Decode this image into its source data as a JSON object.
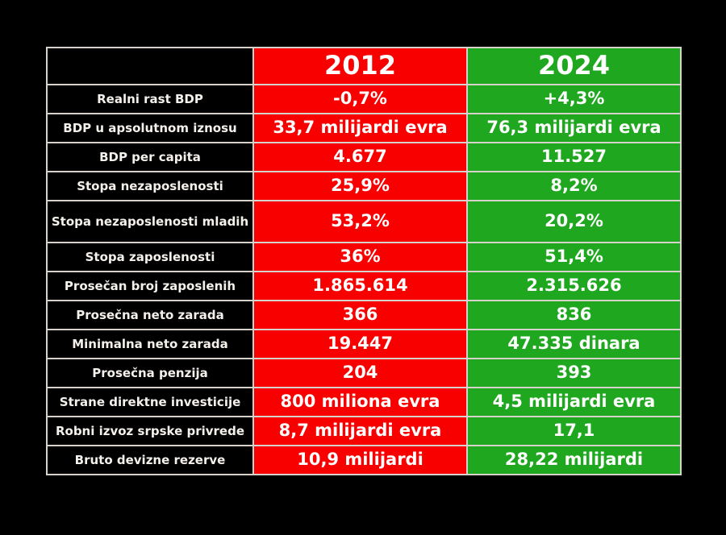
{
  "header": {
    "col1": "",
    "col2": "2012",
    "col3": "2024"
  },
  "colors": {
    "red": "#f80000",
    "green": "#1fa81f"
  },
  "rows": [
    {
      "label": "Realni rast BDP",
      "y2012": "-0,7%",
      "y2024": "+4,3%"
    },
    {
      "label": "BDP u apsolutnom iznosu",
      "y2012": "33,7 milijardi evra",
      "y2024": "76,3 milijardi evra"
    },
    {
      "label": "BDP per capita",
      "y2012": "4.677",
      "y2024": "11.527"
    },
    {
      "label": "Stopa nezaposlenosti",
      "y2012": "25,9%",
      "y2024": "8,2%"
    },
    {
      "label": "Stopa nezaposlenosti mladih",
      "y2012": "53,2%",
      "y2024": "20,2%"
    },
    {
      "label": "Stopa zaposlenosti",
      "y2012": "36%",
      "y2024": "51,4%"
    },
    {
      "label": "Prosečan broj zaposlenih",
      "y2012": "1.865.614",
      "y2024": "2.315.626"
    },
    {
      "label": "Prosečna neto zarada",
      "y2012": "366",
      "y2024": "836"
    },
    {
      "label": "Minimalna neto zarada",
      "y2012": "19.447",
      "y2024": "47.335 dinara"
    },
    {
      "label": "Prosečna penzija",
      "y2012": "204",
      "y2024": "393"
    },
    {
      "label": "Strane direktne investicije",
      "y2012": "800 miliona evra",
      "y2024": "4,5 milijardi evra"
    },
    {
      "label": "Robni izvoz srpske privrede",
      "y2012": "8,7 milijardi evra",
      "y2024": "17,1"
    },
    {
      "label": "Bruto devizne rezerve",
      "y2012": "10,9 milijardi",
      "y2024": "28,22 milijardi"
    }
  ]
}
